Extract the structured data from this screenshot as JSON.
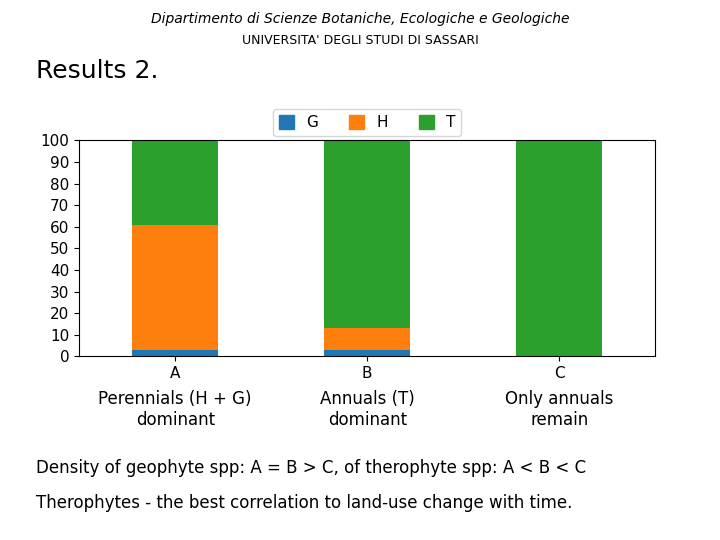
{
  "chart_data": {
    "type": "bar",
    "stacked": true,
    "title": "Results 2.",
    "header": [
      "Dipartimento di Scienze Botaniche, Ecologiche e Geologiche",
      "UNIVERSITA' DEGLI STUDI DI SASSARI"
    ],
    "categories": [
      "A",
      "B",
      "C"
    ],
    "series": [
      {
        "name": "G",
        "values": [
          3,
          3,
          0
        ]
      },
      {
        "name": "H",
        "values": [
          58,
          10,
          0
        ]
      },
      {
        "name": "T",
        "values": [
          39,
          87,
          100
        ]
      }
    ],
    "ylim": [
      0,
      100
    ],
    "yticks": [
      0,
      10,
      20,
      30,
      40,
      50,
      60,
      70,
      80,
      90,
      100
    ],
    "legend": "upper center",
    "annotations": [
      [
        "Perennials (H + G)",
        "dominant"
      ],
      [
        "Annuals (T)",
        "dominant"
      ],
      [
        "Only annuals",
        "remain"
      ]
    ],
    "notes": [
      "Density of geophyte spp: A = B > C, of therophyte spp: A < B < C",
      "Therophytes - the best correlation to land-use change with time."
    ]
  }
}
